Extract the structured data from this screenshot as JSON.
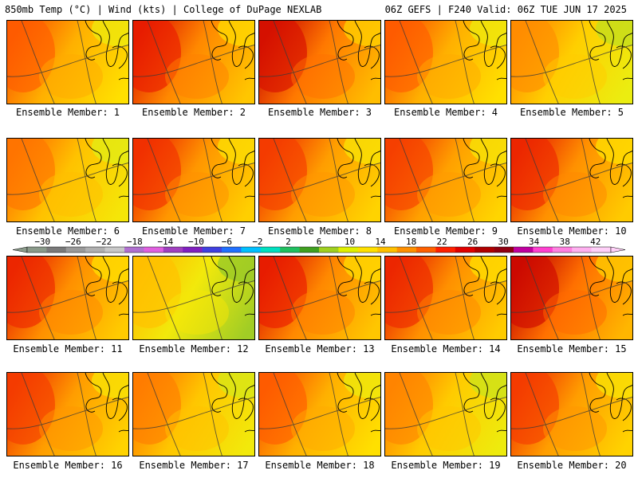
{
  "header": {
    "left": "850mb Temp (°C) | Wind (kts) | College of DuPage NEXLAB",
    "right": "06Z GEFS | F240 Valid: 06Z TUE JUN 17 2025"
  },
  "panel_prefix": "Ensemble Member: ",
  "members": [
    {
      "label": "Ensemble Member: 1",
      "tone": 0.5
    },
    {
      "label": "Ensemble Member: 2",
      "tone": 0.62
    },
    {
      "label": "Ensemble Member: 3",
      "tone": 0.66
    },
    {
      "label": "Ensemble Member: 4",
      "tone": 0.5
    },
    {
      "label": "Ensemble Member: 5",
      "tone": 0.38
    },
    {
      "label": "Ensemble Member: 6",
      "tone": 0.44
    },
    {
      "label": "Ensemble Member: 7",
      "tone": 0.58
    },
    {
      "label": "Ensemble Member: 8",
      "tone": 0.56
    },
    {
      "label": "Ensemble Member: 9",
      "tone": 0.55
    },
    {
      "label": "Ensemble Member: 10",
      "tone": 0.6
    },
    {
      "label": "Ensemble Member: 11",
      "tone": 0.6
    },
    {
      "label": "Ensemble Member: 12",
      "tone": 0.22
    },
    {
      "label": "Ensemble Member: 13",
      "tone": 0.62
    },
    {
      "label": "Ensemble Member: 14",
      "tone": 0.6
    },
    {
      "label": "Ensemble Member: 15",
      "tone": 0.68
    },
    {
      "label": "Ensemble Member: 16",
      "tone": 0.56
    },
    {
      "label": "Ensemble Member: 17",
      "tone": 0.42
    },
    {
      "label": "Ensemble Member: 18",
      "tone": 0.5
    },
    {
      "label": "Ensemble Member: 19",
      "tone": 0.4
    },
    {
      "label": "Ensemble Member: 20",
      "tone": 0.56
    }
  ],
  "colorbar": {
    "labels": [
      "−30",
      "−26",
      "−22",
      "−18",
      "−14",
      "−10",
      "−6",
      "−2",
      "2",
      "6",
      "10",
      "14",
      "18",
      "22",
      "26",
      "30",
      "34",
      "38",
      "42"
    ],
    "colors": [
      "#8a9a8a",
      "#7a7a7a",
      "#9a9a9a",
      "#b0b0b0",
      "#c8c8c8",
      "#b070d0",
      "#e060e0",
      "#a040c0",
      "#8020c0",
      "#4040e0",
      "#2070ff",
      "#00c0ff",
      "#00e0c0",
      "#20c060",
      "#40a020",
      "#a0d020",
      "#e0f000",
      "#ffe000",
      "#ffc000",
      "#ff9000",
      "#ff6000",
      "#ff2000",
      "#e00000",
      "#b00000",
      "#900010",
      "#c000a0",
      "#ff40d0",
      "#ff80e0",
      "#ffb0f0",
      "#ffd0f8"
    ]
  }
}
